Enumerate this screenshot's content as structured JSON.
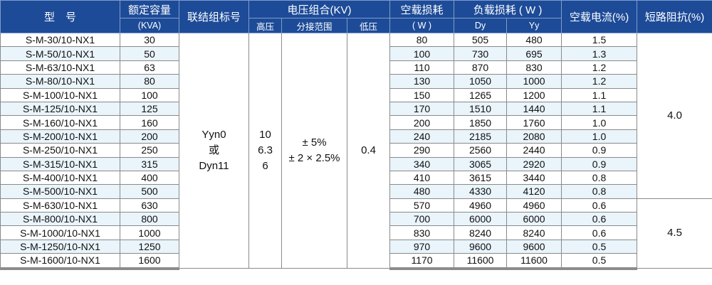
{
  "header": {
    "model": "型　号",
    "capacity": "额定容量",
    "capacity_unit": "(KVA)",
    "connection": "联结组标号",
    "voltage": "电压组合(KV)",
    "hv": "高压",
    "tap": "分接范围",
    "lv": "低压",
    "noload_loss": "空载损耗",
    "noload_loss_unit": "( W )",
    "load_loss": "负载损耗 ( W )",
    "dy": "Dy",
    "yy": "Yy",
    "noload_current": "空载电流(%)",
    "impedance": "短路阻抗(%)"
  },
  "merged": {
    "connection": [
      "Yyn0",
      "或",
      "Dyn11"
    ],
    "hv": [
      "10",
      "6.3",
      "6"
    ],
    "tap": [
      "± 5%",
      "± 2 × 2.5%"
    ],
    "lv": "0.4",
    "impedance_a": "4.0",
    "impedance_b": "4.5"
  },
  "rows": [
    [
      "S-M-30/10-NX1",
      "30",
      "80",
      "505",
      "480",
      "1.5"
    ],
    [
      "S-M-50/10-NX1",
      "50",
      "100",
      "730",
      "695",
      "1.3"
    ],
    [
      "S-M-63/10-NX1",
      "63",
      "110",
      "870",
      "830",
      "1.2"
    ],
    [
      "S-M-80/10-NX1",
      "80",
      "130",
      "1050",
      "1000",
      "1.2"
    ],
    [
      "S-M-100/10-NX1",
      "100",
      "150",
      "1265",
      "1200",
      "1.1"
    ],
    [
      "S-M-125/10-NX1",
      "125",
      "170",
      "1510",
      "1440",
      "1.1"
    ],
    [
      "S-M-160/10-NX1",
      "160",
      "200",
      "1850",
      "1760",
      "1.0"
    ],
    [
      "S-M-200/10-NX1",
      "200",
      "240",
      "2185",
      "2080",
      "1.0"
    ],
    [
      "S-M-250/10-NX1",
      "250",
      "290",
      "2560",
      "2440",
      "0.9"
    ],
    [
      "S-M-315/10-NX1",
      "315",
      "340",
      "3065",
      "2920",
      "0.9"
    ],
    [
      "S-M-400/10-NX1",
      "400",
      "410",
      "3615",
      "3440",
      "0.8"
    ],
    [
      "S-M-500/10-NX1",
      "500",
      "480",
      "4330",
      "4120",
      "0.8"
    ],
    [
      "S-M-630/10-NX1",
      "630",
      "570",
      "4960",
      "4960",
      "0.6"
    ],
    [
      "S-M-800/10-NX1",
      "800",
      "700",
      "6000",
      "6000",
      "0.6"
    ],
    [
      "S-M-1000/10-NX1",
      "1000",
      "830",
      "8240",
      "8240",
      "0.6"
    ],
    [
      "S-M-1250/10-NX1",
      "1250",
      "970",
      "9600",
      "9600",
      "0.5"
    ],
    [
      "S-M-1600/10-NX1",
      "1600",
      "1170",
      "11600",
      "11600",
      "0.5"
    ]
  ],
  "colors": {
    "header_bg": "#1d4b98",
    "alt_row_bg": "#e9f4fb"
  }
}
